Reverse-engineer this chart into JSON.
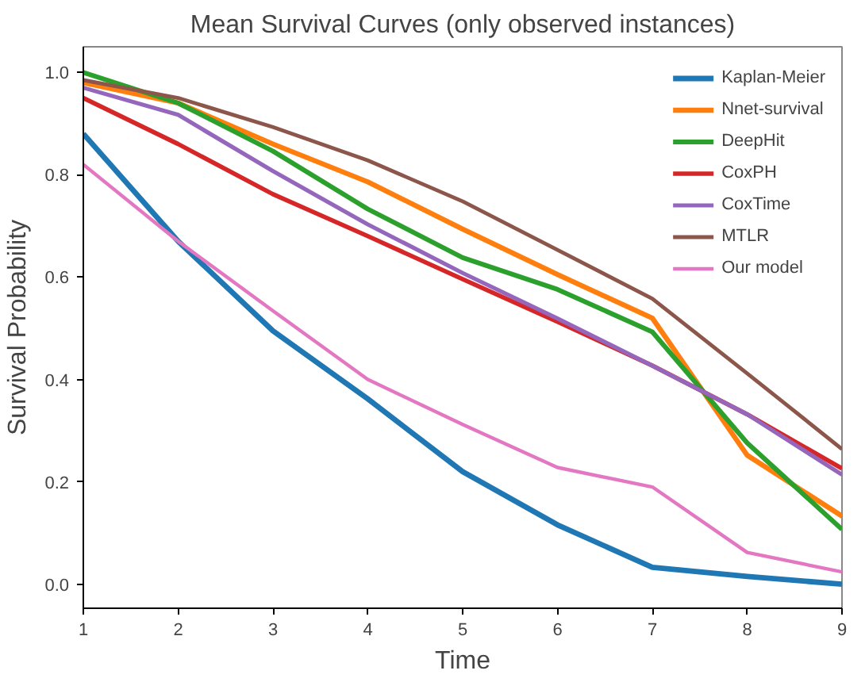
{
  "chart_data": {
    "type": "line",
    "title": "Mean Survival Curves (only observed instances)",
    "xlabel": "Time",
    "ylabel": "Survival Probability",
    "x": [
      1,
      2,
      3,
      4,
      5,
      6,
      7,
      8,
      9
    ],
    "series": [
      {
        "name": "Kaplan-Meier",
        "color": "#1f77b4",
        "values": [
          0.88,
          0.67,
          0.495,
          0.362,
          0.22,
          0.116,
          0.033,
          0.015,
          0.0
        ]
      },
      {
        "name": "Nnet-survival",
        "color": "#ff7f0e",
        "values": [
          0.98,
          0.94,
          0.86,
          0.786,
          0.694,
          0.605,
          0.52,
          0.252,
          0.133
        ]
      },
      {
        "name": "DeepHit",
        "color": "#2ca02c",
        "values": [
          1.0,
          0.94,
          0.846,
          0.733,
          0.638,
          0.576,
          0.493,
          0.276,
          0.107
        ]
      },
      {
        "name": "CoxPH",
        "color": "#d62728",
        "values": [
          0.95,
          0.86,
          0.762,
          0.68,
          0.596,
          0.513,
          0.427,
          0.332,
          0.226
        ]
      },
      {
        "name": "CoxTime",
        "color": "#9467bd",
        "values": [
          0.97,
          0.917,
          0.807,
          0.703,
          0.608,
          0.519,
          0.427,
          0.332,
          0.214
        ]
      },
      {
        "name": "MTLR",
        "color": "#8c564b",
        "values": [
          0.985,
          0.95,
          0.893,
          0.828,
          0.748,
          0.653,
          0.558,
          0.412,
          0.264
        ]
      },
      {
        "name": "Our model",
        "color": "#e377c2",
        "values": [
          0.82,
          0.67,
          0.534,
          0.4,
          0.312,
          0.228,
          0.19,
          0.062,
          0.024
        ]
      }
    ],
    "xlim": [
      1,
      9
    ],
    "ylim": [
      -0.047,
      1.05
    ],
    "xticks": [
      1,
      2,
      3,
      4,
      5,
      6,
      7,
      8,
      9
    ],
    "yticks": [
      {
        "value": 0,
        "label": "0.0"
      },
      {
        "value": 0.2,
        "label": "0.2"
      },
      {
        "value": 0.4,
        "label": "0.4"
      },
      {
        "value": 0.6,
        "label": "0.6"
      },
      {
        "value": 0.8,
        "label": "0.8"
      },
      {
        "value": 1.0,
        "label": "1.0"
      }
    ],
    "grid": false,
    "legend": "top right"
  }
}
